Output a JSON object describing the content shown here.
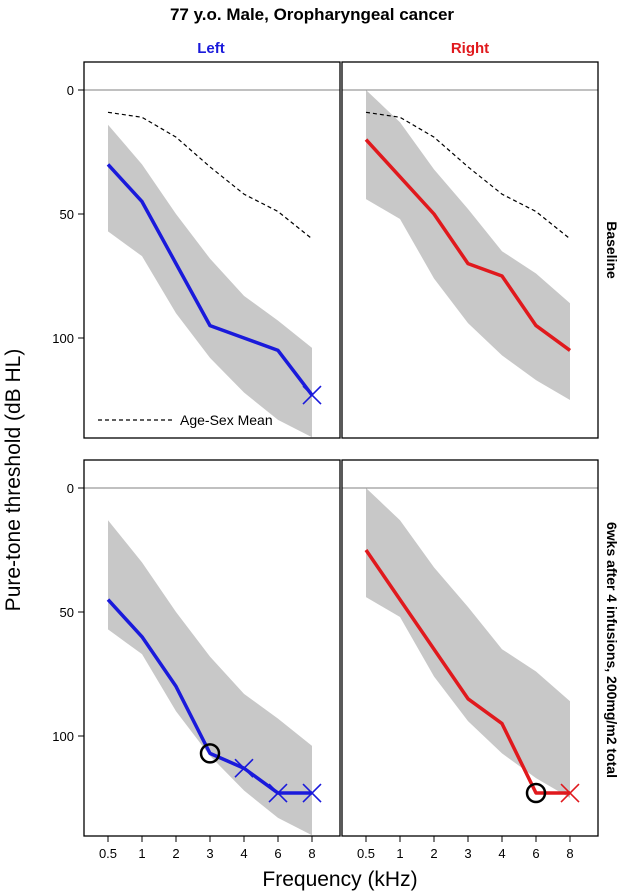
{
  "chart_data": {
    "type": "line",
    "title": "77 y.o. Male, Oropharyngeal cancer",
    "xlabel": "Frequency (kHz)",
    "ylabel": "Pure-tone threshold (dB HL)",
    "x_ticks": [
      "0.5",
      "1",
      "2",
      "3",
      "4",
      "6",
      "8"
    ],
    "y_ticks": [
      0,
      50,
      100
    ],
    "ylim": [
      145,
      -5
    ],
    "columns": [
      {
        "label": "Left",
        "color": "#1a1adb"
      },
      {
        "label": "Right",
        "color": "#e0191d"
      }
    ],
    "rows": [
      {
        "label": "Baseline"
      },
      {
        "label": "6wks after 4 infusions, 200mg/m2 total"
      }
    ],
    "legend": {
      "label": "Age-Sex Mean",
      "style": "dashed",
      "position": "bottom-left of top-left panel"
    },
    "age_sex_mean": [
      9,
      11,
      19,
      31,
      42,
      49,
      60
    ],
    "panels": [
      {
        "row": 0,
        "col": 0,
        "band_upper": [
          14,
          30,
          50,
          68,
          83,
          93,
          104
        ],
        "band_lower": [
          57,
          67,
          90,
          108,
          122,
          133,
          140
        ],
        "series": [
          30,
          45,
          70,
          95,
          100,
          105,
          123
        ],
        "x_markers": [
          {
            "x": "8",
            "y": 123
          }
        ],
        "o_markers": [],
        "show_mean": true,
        "show_legend": true
      },
      {
        "row": 0,
        "col": 1,
        "band_upper": [
          0,
          13,
          32,
          48,
          65,
          74,
          86
        ],
        "band_lower": [
          44,
          52,
          76,
          94,
          107,
          117,
          125
        ],
        "series": [
          20,
          35,
          50,
          70,
          75,
          95,
          105
        ],
        "x_markers": [],
        "o_markers": [],
        "show_mean": true,
        "show_legend": false
      },
      {
        "row": 1,
        "col": 0,
        "band_upper": [
          13,
          30,
          50,
          68,
          83,
          93,
          104
        ],
        "band_lower": [
          57,
          67,
          90,
          108,
          122,
          133,
          140
        ],
        "series": [
          45,
          60,
          80,
          107,
          113,
          123,
          123
        ],
        "x_markers": [
          {
            "x": "4",
            "y": 113
          },
          {
            "x": "6",
            "y": 123
          },
          {
            "x": "8",
            "y": 123
          }
        ],
        "o_markers": [
          {
            "x": "3",
            "y": 107
          }
        ],
        "show_mean": false,
        "show_legend": false
      },
      {
        "row": 1,
        "col": 1,
        "band_upper": [
          0,
          13,
          32,
          48,
          65,
          74,
          86
        ],
        "band_lower": [
          44,
          52,
          76,
          94,
          107,
          117,
          125
        ],
        "series": [
          25,
          45,
          65,
          85,
          95,
          123,
          123
        ],
        "x_markers": [
          {
            "x": "8",
            "y": 123
          }
        ],
        "o_markers": [
          {
            "x": "6",
            "y": 123
          }
        ],
        "show_mean": false,
        "show_legend": false
      }
    ]
  }
}
